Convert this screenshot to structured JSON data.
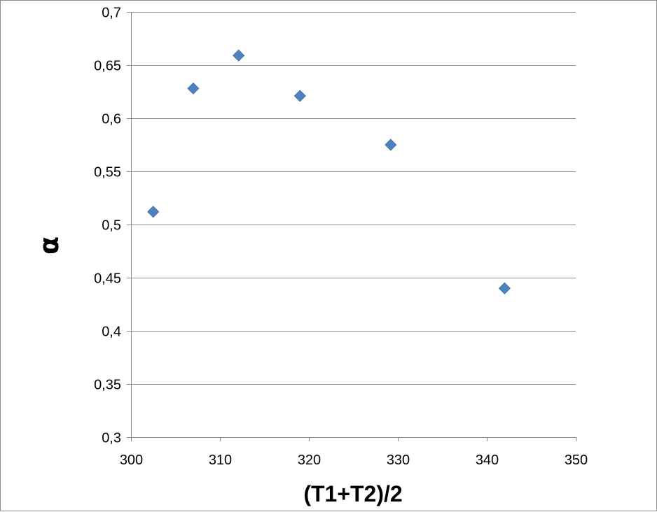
{
  "chart_data": {
    "type": "scatter",
    "title": "",
    "xlabel": "(T1+T2)/2",
    "ylabel": "α",
    "xlim": [
      300,
      350
    ],
    "ylim": [
      0.3,
      0.7
    ],
    "x_ticks": [
      "300",
      "310",
      "320",
      "330",
      "340",
      "350"
    ],
    "y_ticks": [
      "0,3",
      "0,35",
      "0,4",
      "0,45",
      "0,5",
      "0,55",
      "0,6",
      "0,65",
      "0,7"
    ],
    "x_tick_values": [
      300,
      310,
      320,
      330,
      340,
      350
    ],
    "y_tick_values": [
      0.3,
      0.35,
      0.4,
      0.45,
      0.5,
      0.55,
      0.6,
      0.65,
      0.7
    ],
    "grid": "horizontal",
    "legend": "none",
    "marker": "diamond",
    "series": [
      {
        "color": "#4f81bd",
        "points": [
          {
            "x": 302.5,
            "y": 0.512
          },
          {
            "x": 307.0,
            "y": 0.628
          },
          {
            "x": 312.1,
            "y": 0.659
          },
          {
            "x": 319.0,
            "y": 0.621
          },
          {
            "x": 329.2,
            "y": 0.575
          },
          {
            "x": 342.0,
            "y": 0.44
          }
        ]
      }
    ]
  }
}
